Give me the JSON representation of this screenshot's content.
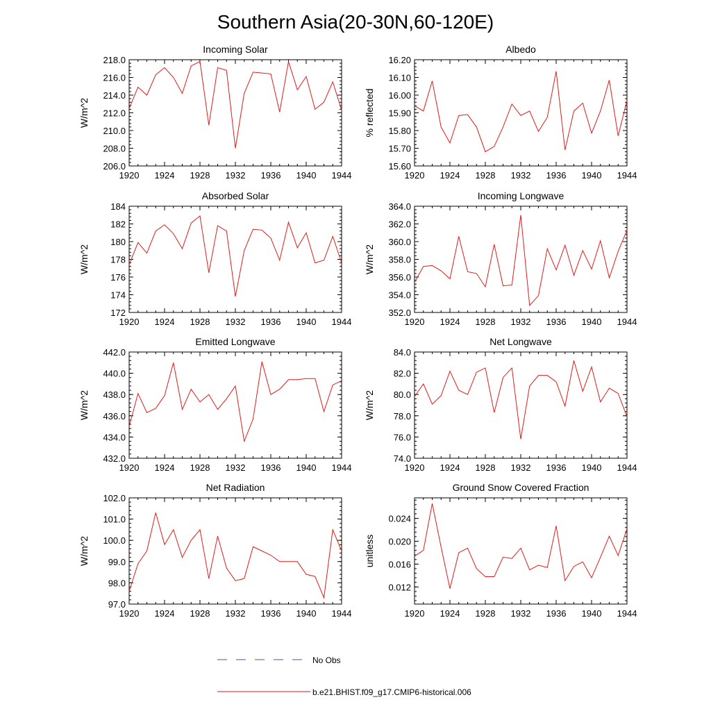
{
  "title": "Southern Asia(20-30N,60-120E)",
  "legend": [
    {
      "label": "No Obs",
      "color": "#4f4fb4",
      "style": "dashed"
    },
    {
      "label": "b.e21.BHIST.f09_g17.CMIP6-historical.006",
      "color": "#e31a1c",
      "style": "solid"
    }
  ],
  "chart_data": [
    {
      "type": "line",
      "title": "Incoming Solar",
      "xlabel": "",
      "ylabel": "W/m^2",
      "xlim": [
        1920,
        1944
      ],
      "ylim": [
        206,
        218
      ],
      "xticks": [
        1920,
        1924,
        1928,
        1932,
        1936,
        1940,
        1944
      ],
      "yticks": [
        "206.0",
        "208.0",
        "210.0",
        "212.0",
        "214.0",
        "216.0",
        "218.0"
      ],
      "yminor": 0.4,
      "grid": false,
      "x": [
        1920,
        1921,
        1922,
        1923,
        1924,
        1925,
        1926,
        1927,
        1928,
        1929,
        1930,
        1931,
        1932,
        1933,
        1934,
        1935,
        1936,
        1937,
        1938,
        1939,
        1940,
        1941,
        1942,
        1943,
        1944
      ],
      "series": [
        {
          "name": "b.e21.BHIST.f09_g17.CMIP6-historical.006",
          "color": "#e31a1c",
          "values": [
            212.5,
            214.9,
            214.0,
            216.3,
            217.1,
            216.0,
            214.2,
            217.3,
            217.8,
            210.6,
            217.1,
            216.8,
            208.0,
            214.2,
            216.6,
            216.5,
            216.4,
            212.1,
            217.8,
            214.6,
            216.1,
            212.4,
            213.2,
            215.5,
            212.3
          ]
        }
      ]
    },
    {
      "type": "line",
      "title": "Albedo",
      "xlabel": "",
      "ylabel": "% reflected",
      "xlim": [
        1920,
        1944
      ],
      "ylim": [
        15.6,
        16.2
      ],
      "xticks": [
        1920,
        1924,
        1928,
        1932,
        1936,
        1940,
        1944
      ],
      "yticks": [
        "15.60",
        "15.70",
        "15.80",
        "15.90",
        "16.00",
        "16.10",
        "16.20"
      ],
      "yminor": 0.02,
      "grid": false,
      "x": [
        1920,
        1921,
        1922,
        1923,
        1924,
        1925,
        1926,
        1927,
        1928,
        1929,
        1930,
        1931,
        1932,
        1933,
        1934,
        1935,
        1936,
        1937,
        1938,
        1939,
        1940,
        1941,
        1942,
        1943,
        1944
      ],
      "series": [
        {
          "name": "b.e21.BHIST.f09_g17.CMIP6-historical.006",
          "color": "#e31a1c",
          "values": [
            15.94,
            15.91,
            16.08,
            15.82,
            15.73,
            15.885,
            15.89,
            15.82,
            15.68,
            15.71,
            15.82,
            15.95,
            15.885,
            15.91,
            15.795,
            15.875,
            16.135,
            15.69,
            15.91,
            15.955,
            15.785,
            15.91,
            16.085,
            15.77,
            15.97
          ]
        }
      ]
    },
    {
      "type": "line",
      "title": "Absorbed Solar",
      "xlabel": "",
      "ylabel": "W/m^2",
      "xlim": [
        1920,
        1944
      ],
      "ylim": [
        172,
        184
      ],
      "xticks": [
        1920,
        1924,
        1928,
        1932,
        1936,
        1940,
        1944
      ],
      "yticks": [
        "172",
        "174",
        "176",
        "178",
        "180",
        "182",
        "184"
      ],
      "yminor": 0.4,
      "grid": false,
      "x": [
        1920,
        1921,
        1922,
        1923,
        1924,
        1925,
        1926,
        1927,
        1928,
        1929,
        1930,
        1931,
        1932,
        1933,
        1934,
        1935,
        1936,
        1937,
        1938,
        1939,
        1940,
        1941,
        1942,
        1943,
        1944
      ],
      "series": [
        {
          "name": "b.e21.BHIST.f09_g17.CMIP6-historical.006",
          "color": "#e31a1c",
          "values": [
            177.4,
            179.9,
            178.7,
            181.2,
            181.9,
            180.9,
            179.2,
            182.1,
            182.9,
            176.5,
            181.8,
            181.2,
            173.8,
            179.0,
            181.4,
            181.3,
            180.4,
            177.9,
            182.2,
            179.3,
            181.0,
            177.6,
            177.9,
            180.6,
            177.6
          ]
        }
      ]
    },
    {
      "type": "line",
      "title": "Incoming Longwave",
      "xlabel": "",
      "ylabel": "W/m^2",
      "xlim": [
        1920,
        1944
      ],
      "ylim": [
        352,
        364
      ],
      "xticks": [
        1920,
        1924,
        1928,
        1932,
        1936,
        1940,
        1944
      ],
      "yticks": [
        "352.0",
        "354.0",
        "356.0",
        "358.0",
        "360.0",
        "362.0",
        "364.0"
      ],
      "yminor": 0.4,
      "grid": false,
      "x": [
        1920,
        1921,
        1922,
        1923,
        1924,
        1925,
        1926,
        1927,
        1928,
        1929,
        1930,
        1931,
        1932,
        1933,
        1934,
        1935,
        1936,
        1937,
        1938,
        1939,
        1940,
        1941,
        1942,
        1943,
        1944
      ],
      "series": [
        {
          "name": "b.e21.BHIST.f09_g17.CMIP6-historical.006",
          "color": "#e31a1c",
          "values": [
            355.4,
            357.2,
            357.3,
            356.7,
            355.8,
            360.6,
            356.6,
            356.4,
            354.9,
            359.7,
            355.0,
            355.1,
            363.0,
            352.8,
            353.9,
            359.2,
            356.8,
            359.6,
            356.2,
            359.0,
            356.9,
            360.1,
            355.9,
            358.9,
            361.3
          ]
        }
      ]
    },
    {
      "type": "line",
      "title": "Emitted Longwave",
      "xlabel": "",
      "ylabel": "W/m^2",
      "xlim": [
        1920,
        1944
      ],
      "ylim": [
        432,
        442
      ],
      "xticks": [
        1920,
        1924,
        1928,
        1932,
        1936,
        1940,
        1944
      ],
      "yticks": [
        "432.0",
        "434.0",
        "436.0",
        "438.0",
        "440.0",
        "442.0"
      ],
      "yminor": 0.4,
      "grid": false,
      "x": [
        1920,
        1921,
        1922,
        1923,
        1924,
        1925,
        1926,
        1927,
        1928,
        1929,
        1930,
        1931,
        1932,
        1933,
        1934,
        1935,
        1936,
        1937,
        1938,
        1939,
        1940,
        1941,
        1942,
        1943,
        1944
      ],
      "series": [
        {
          "name": "b.e21.BHIST.f09_g17.CMIP6-historical.006",
          "color": "#e31a1c",
          "values": [
            435.0,
            438.1,
            436.3,
            436.7,
            437.9,
            441.0,
            436.6,
            438.5,
            437.3,
            438.0,
            436.6,
            437.6,
            438.8,
            433.6,
            435.7,
            441.1,
            438.0,
            438.5,
            439.4,
            439.4,
            439.5,
            439.5,
            436.4,
            438.9,
            439.3
          ]
        }
      ]
    },
    {
      "type": "line",
      "title": "Net Longwave",
      "xlabel": "",
      "ylabel": "W/m^2",
      "xlim": [
        1920,
        1944
      ],
      "ylim": [
        74,
        84
      ],
      "xticks": [
        1920,
        1924,
        1928,
        1932,
        1936,
        1940,
        1944
      ],
      "yticks": [
        "74.0",
        "76.0",
        "78.0",
        "80.0",
        "82.0",
        "84.0"
      ],
      "yminor": 0.4,
      "grid": false,
      "x": [
        1920,
        1921,
        1922,
        1923,
        1924,
        1925,
        1926,
        1927,
        1928,
        1929,
        1930,
        1931,
        1932,
        1933,
        1934,
        1935,
        1936,
        1937,
        1938,
        1939,
        1940,
        1941,
        1942,
        1943,
        1944
      ],
      "series": [
        {
          "name": "b.e21.BHIST.f09_g17.CMIP6-historical.006",
          "color": "#e31a1c",
          "values": [
            79.8,
            81.0,
            79.1,
            79.9,
            82.2,
            80.4,
            80.0,
            82.1,
            82.5,
            78.3,
            81.6,
            82.5,
            75.8,
            80.8,
            81.8,
            81.8,
            81.2,
            78.9,
            83.2,
            80.3,
            82.6,
            79.3,
            80.6,
            80.1,
            77.9
          ]
        }
      ]
    },
    {
      "type": "line",
      "title": "Net Radiation",
      "xlabel": "",
      "ylabel": "W/m^2",
      "xlim": [
        1920,
        1944
      ],
      "ylim": [
        97,
        102
      ],
      "xticks": [
        1920,
        1924,
        1928,
        1932,
        1936,
        1940,
        1944
      ],
      "yticks": [
        "97.0",
        "98.0",
        "99.0",
        "100.0",
        "101.0",
        "102.0"
      ],
      "yminor": 0.2,
      "grid": false,
      "x": [
        1920,
        1921,
        1922,
        1923,
        1924,
        1925,
        1926,
        1927,
        1928,
        1929,
        1930,
        1931,
        1932,
        1933,
        1934,
        1935,
        1936,
        1937,
        1938,
        1939,
        1940,
        1941,
        1942,
        1943,
        1944
      ],
      "series": [
        {
          "name": "b.e21.BHIST.f09_g17.CMIP6-historical.006",
          "color": "#e31a1c",
          "values": [
            97.6,
            98.9,
            99.5,
            101.3,
            99.8,
            100.5,
            99.2,
            100.0,
            100.5,
            98.2,
            100.2,
            98.7,
            98.1,
            98.2,
            99.7,
            99.5,
            99.3,
            99.0,
            99.0,
            99.0,
            98.4,
            98.3,
            97.3,
            100.5,
            99.5
          ]
        }
      ]
    },
    {
      "type": "line",
      "title": "Ground Snow Covered Fraction",
      "xlabel": "",
      "ylabel": "unitless",
      "xlim": [
        1920,
        1944
      ],
      "ylim": [
        0.009,
        0.0276
      ],
      "xticks": [
        1920,
        1924,
        1928,
        1932,
        1936,
        1940,
        1944
      ],
      "yticks": [
        "0.012",
        "0.016",
        "0.020",
        "0.024"
      ],
      "ytickvals": [
        0.012,
        0.016,
        0.02,
        0.024
      ],
      "yminor": 0.0008,
      "grid": false,
      "x": [
        1920,
        1921,
        1922,
        1923,
        1924,
        1925,
        1926,
        1927,
        1928,
        1929,
        1930,
        1931,
        1932,
        1933,
        1934,
        1935,
        1936,
        1937,
        1938,
        1939,
        1940,
        1941,
        1942,
        1943,
        1944
      ],
      "series": [
        {
          "name": "b.e21.BHIST.f09_g17.CMIP6-historical.006",
          "color": "#e31a1c",
          "values": [
            0.0174,
            0.0184,
            0.0266,
            0.019,
            0.0117,
            0.018,
            0.0188,
            0.0152,
            0.0138,
            0.0138,
            0.0172,
            0.017,
            0.0188,
            0.015,
            0.0158,
            0.0154,
            0.0227,
            0.0131,
            0.0156,
            0.0164,
            0.0136,
            0.0172,
            0.0209,
            0.0175,
            0.0222
          ]
        }
      ]
    }
  ]
}
